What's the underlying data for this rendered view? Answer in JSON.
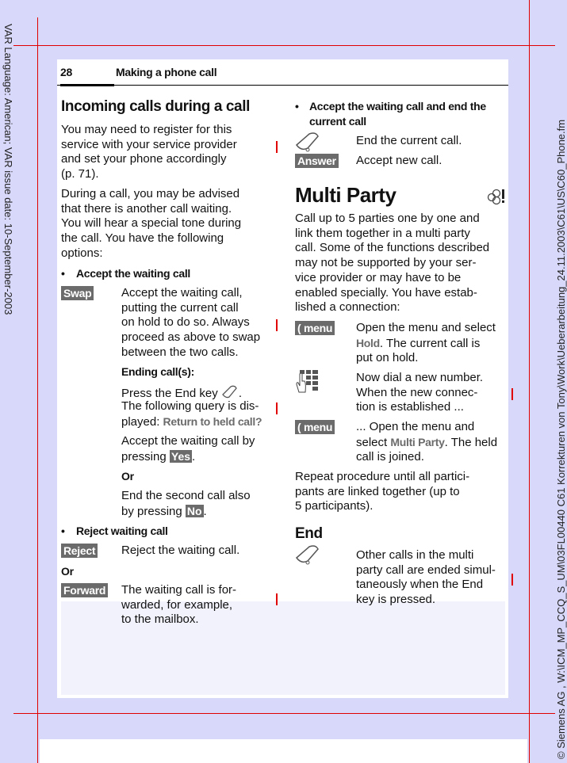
{
  "margin": {
    "left_note": "VAR Language: American; VAR issue date: 10-September-2003",
    "right_note": "© Siemens AG , W:\\ICM_MP_CCQ_S_UM\\03FL00440 C61 Korrekturen von Tony\\Work\\Ueberarbeitung_24.11.2003\\C61\\US\\C60_Phone.fm"
  },
  "header": {
    "page_number": "28",
    "chapter": "Making a phone call"
  },
  "left": {
    "title": "Incoming calls during a call",
    "para1": "You may need to register for this\nservice with your service provider\nand set your phone accordingly\n(p. 71).",
    "para2": "During a call, you may be advised\nthat there is another call waiting.\nYou will hear a special tone during\nthe call. You have the following\noptions:",
    "bullet1": "Accept the waiting call",
    "swap_key": "Swap",
    "swap_text": "Accept the waiting call,\nputting the current call\non hold to do so. Always\nproceed as above to swap\nbetween the two calls.",
    "ending_heading": "Ending call(s):",
    "press_end": "Press the End key",
    "press_end_after": ".",
    "query_line": "The following query is dis-",
    "played": "played: ",
    "query": "Return to held call?",
    "accept_line1": "Accept the waiting call by",
    "accept_pressing": "pressing ",
    "yes_key": "Yes",
    "period": ".",
    "or1": "Or",
    "end_second_line1": "End the second call also",
    "end_second_pressing": "by pressing ",
    "no_key": "No",
    "bullet2": "Reject waiting call",
    "reject_key": "Reject",
    "reject_text": "Reject the waiting call.",
    "or2": "Or",
    "forward_key": "Forward",
    "forward_text": "The waiting call is for-\nwarded, for example,\nto the mailbox."
  },
  "right": {
    "bullet": "Accept the waiting call and end the\ncurrent call",
    "end_icon": "end-key-icon",
    "end_text": "End the current call.",
    "answer_key": "Answer",
    "answer_text": "Accept new call.",
    "title": "Multi Party",
    "network_icon": "network-service-icon",
    "para": "Call up to 5 parties one by one and\nlink them together in a multi party\ncall. Some of the functions described\nmay not be supported by your ser-\nvice provider or may have to be\nenabled specially. You have estab-\nlished a connection:",
    "menu_key": "menu",
    "step1_a": "Open the menu and select\n",
    "step1_term": "Hold",
    "step1_b": ". The current call is\nput on hold.",
    "keypad_icon": "keypad-icon",
    "step2": "Now dial a new number.\nWhen the new connec-\ntion is established ...",
    "step3_a": "... Open the menu and\nselect ",
    "step3_term": "Multi Party",
    "step3_b": ". The held\ncall is joined.",
    "repeat": "Repeat procedure until all partici-\npants are linked together (up to\n5 participants).",
    "end_heading": "End",
    "end_para": "Other calls in the multi\nparty call are ended simul-\ntaneously when the End\nkey is pressed."
  },
  "colors": {
    "background": "#d8d8fa",
    "marks": "#e00000",
    "softkey": "#6b6b6b"
  }
}
